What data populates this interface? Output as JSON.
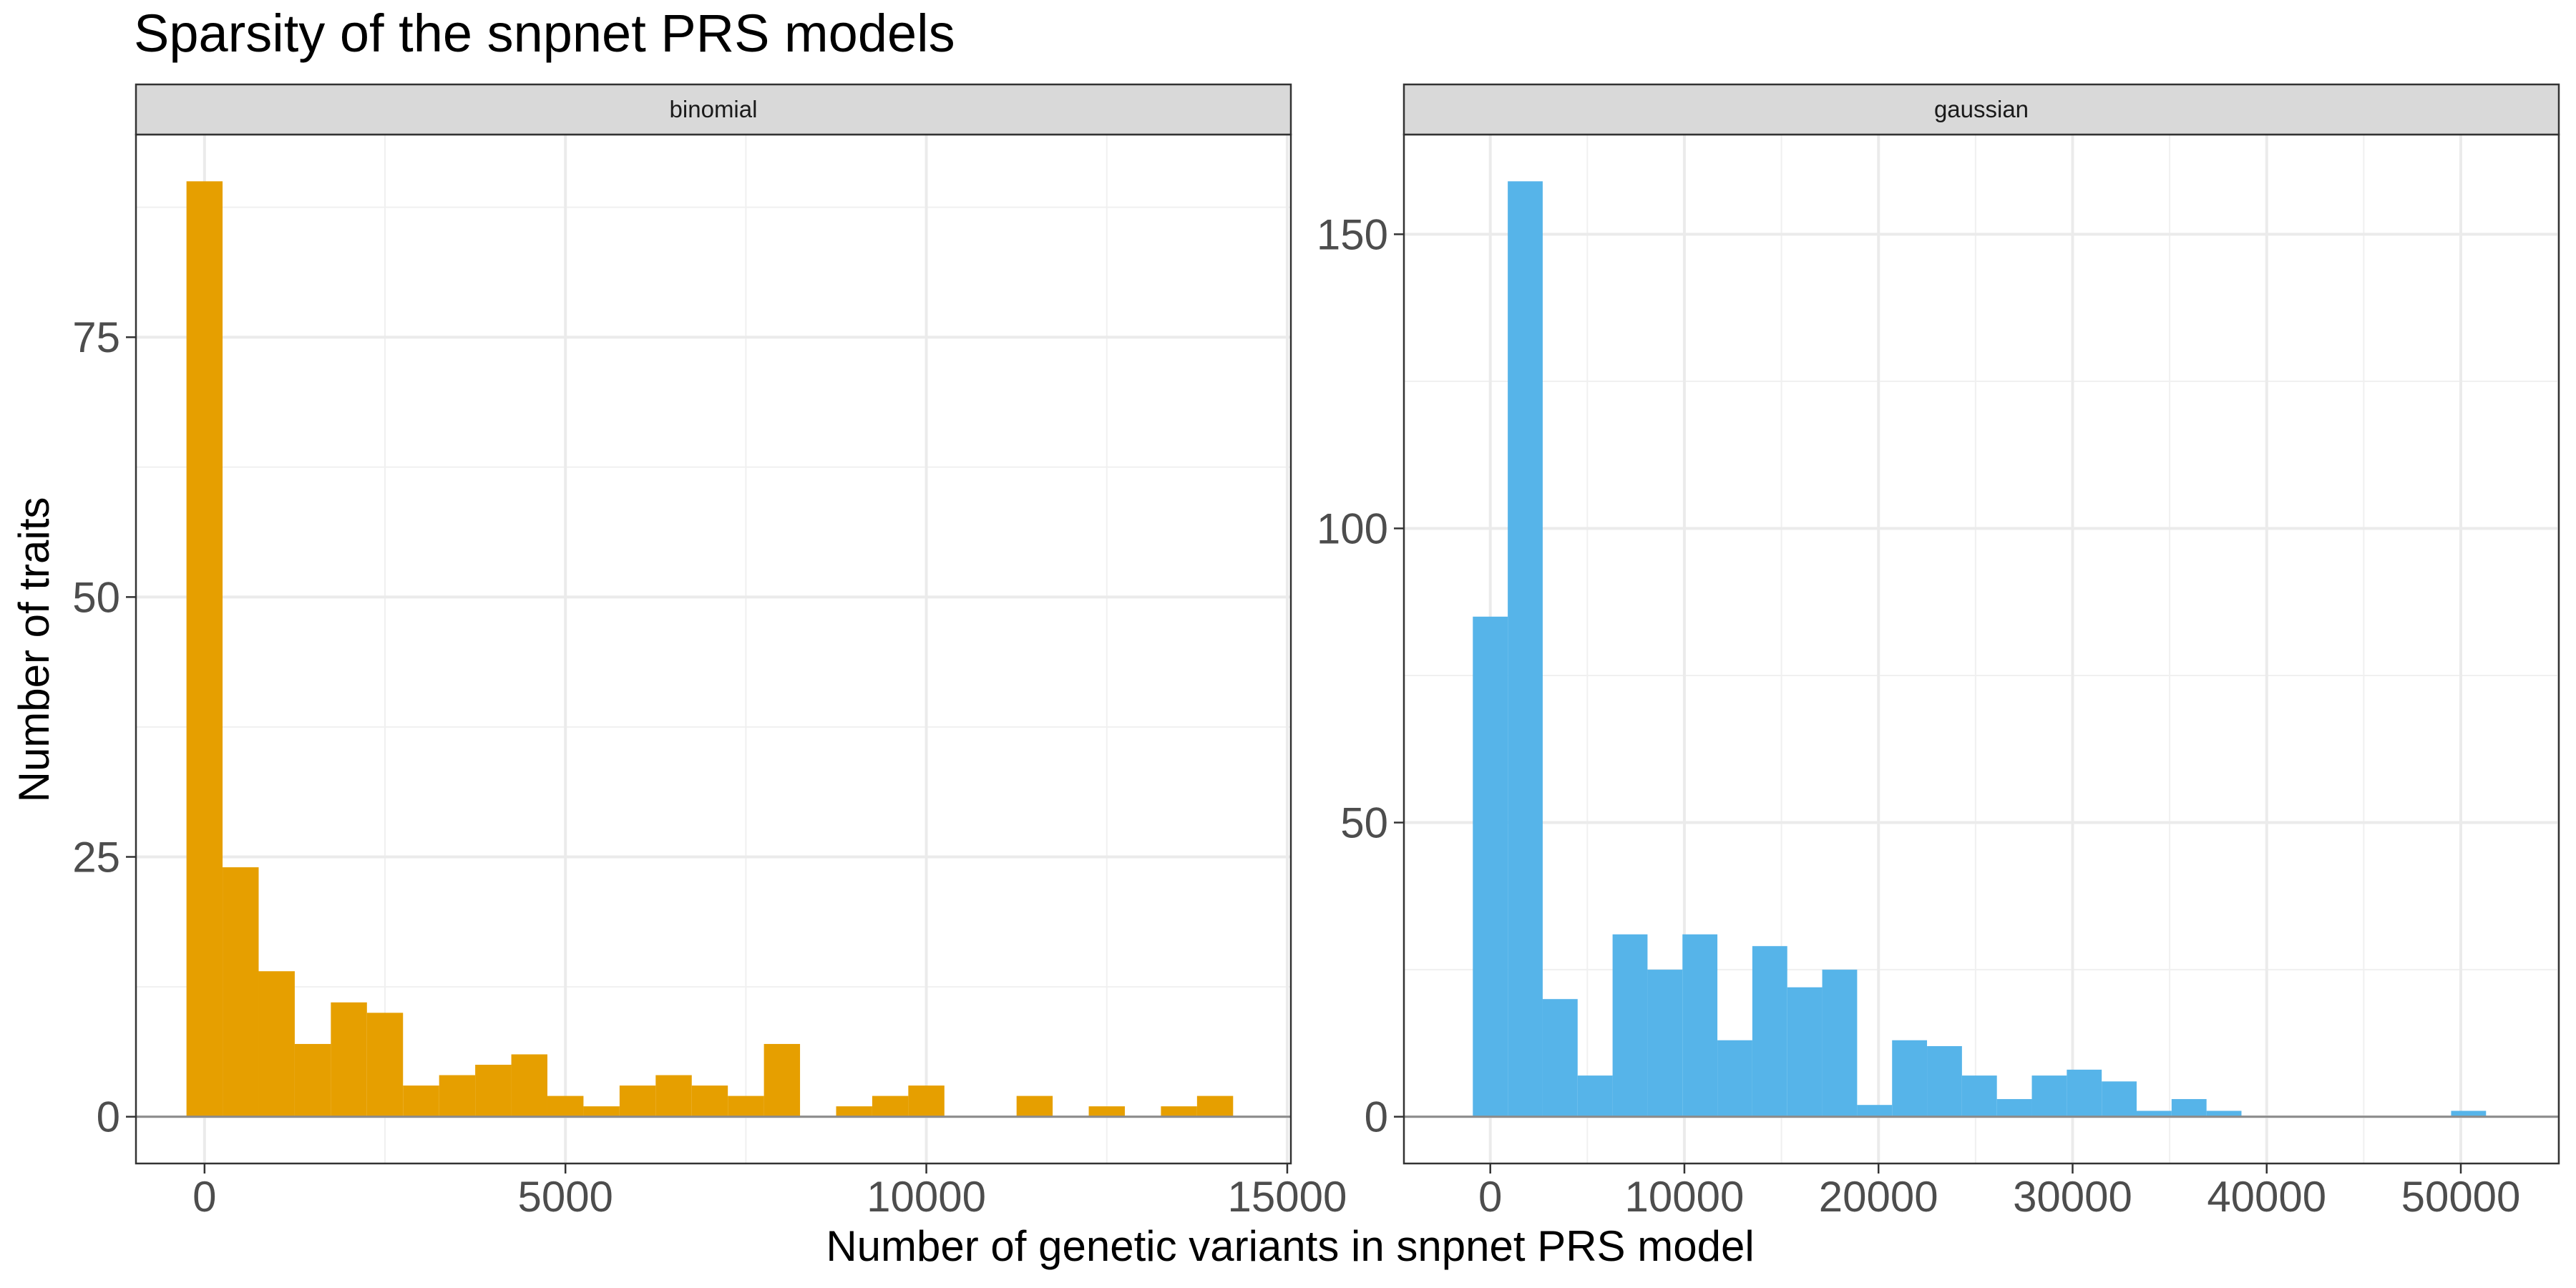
{
  "chart_data": {
    "type": "bar",
    "title": "Sparsity of the snpnet PRS models",
    "xlabel": "Number of genetic variants in snpnet PRS model",
    "ylabel": "Number of traits",
    "grid": true,
    "facets": [
      {
        "name": "binomial",
        "color": "#E69F00",
        "xlim": [
          -950,
          15050
        ],
        "ylim": [
          -4.5,
          94.5
        ],
        "x_ticks": [
          0,
          5000,
          10000,
          15000
        ],
        "x_tick_labels": [
          "0",
          "5000",
          "10000",
          "15000"
        ],
        "y_ticks": [
          0,
          25,
          50,
          75
        ],
        "y_tick_labels": [
          "0",
          "25",
          "50",
          "75"
        ],
        "bin_width": 500,
        "x": [
          0,
          500,
          1000,
          1500,
          2000,
          2500,
          3000,
          3500,
          4000,
          4500,
          5000,
          5500,
          6000,
          6500,
          7000,
          7500,
          8000,
          8500,
          9000,
          9500,
          10000,
          10500,
          11000,
          11500,
          12000,
          12500,
          13000,
          13500,
          14000
        ],
        "values": [
          90,
          24,
          14,
          7,
          11,
          10,
          3,
          4,
          5,
          6,
          2,
          1,
          3,
          4,
          3,
          2,
          7,
          0,
          1,
          2,
          3,
          0,
          0,
          2,
          0,
          1,
          0,
          1,
          2
        ]
      },
      {
        "name": "gaussian",
        "color": "#56B4E9",
        "xlim": [
          -4450,
          55050
        ],
        "ylim": [
          -7.95,
          166.95
        ],
        "x_ticks": [
          0,
          10000,
          20000,
          30000,
          40000,
          50000
        ],
        "x_tick_labels": [
          "0",
          "10000",
          "20000",
          "30000",
          "40000",
          "50000"
        ],
        "y_ticks": [
          0,
          50,
          100,
          150
        ],
        "y_tick_labels": [
          "0",
          "50",
          "100",
          "150"
        ],
        "bin_width": 1800,
        "x": [
          0,
          1800,
          3600,
          5400,
          7200,
          9000,
          10800,
          12600,
          14400,
          16200,
          18000,
          19800,
          21600,
          23400,
          25200,
          27000,
          28800,
          30600,
          32400,
          34200,
          36000,
          37800,
          39600,
          41400,
          43200,
          45000,
          46800,
          48600,
          50400
        ],
        "values": [
          85,
          159,
          20,
          7,
          31,
          25,
          31,
          13,
          29,
          22,
          25,
          2,
          13,
          12,
          7,
          3,
          7,
          8,
          6,
          1,
          3,
          1,
          0,
          0,
          0,
          0,
          0,
          0,
          1
        ]
      }
    ]
  }
}
